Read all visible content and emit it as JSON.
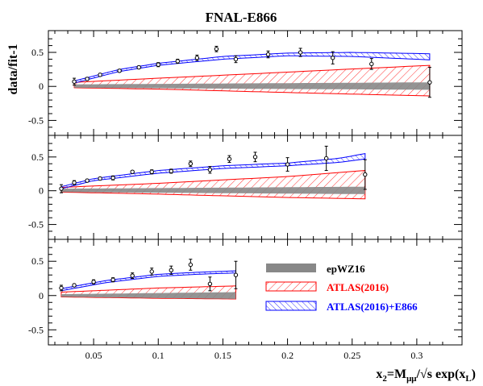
{
  "chart_data": {
    "type": "line",
    "title": "FNAL-E866",
    "ylabel": "data/fit-1",
    "xlabel": "x₂=Mμμ/√s exp(xʟ)",
    "xlabel_parts": {
      "x": "x",
      "x_sub": "2",
      "eq": "=M",
      "m_sub": "μμ",
      "root": "/√s exp(x",
      "l_sub": "L",
      "close": ")"
    },
    "xlim": [
      0.015,
      0.335
    ],
    "xticks": [
      0.05,
      0.1,
      0.15,
      0.2,
      0.25,
      0.3
    ],
    "xtick_labels": [
      "0.05",
      "0.1",
      "0.15",
      "0.2",
      "0.25",
      "0.3"
    ],
    "yticks": [
      -0.5,
      0,
      0.5
    ],
    "ytick_labels": [
      "-0.5",
      "0",
      "0.5"
    ],
    "legend": {
      "placement": "bottom-panel right",
      "entries": [
        {
          "label": "epWZ16",
          "color": "#888888",
          "style": "solid"
        },
        {
          "label": "ATLAS(2016)",
          "color": "#ff0000",
          "style": "hatched"
        },
        {
          "label": "ATLAS(2016)+E866",
          "color": "#0000ff",
          "style": "hatched"
        }
      ]
    },
    "colors": {
      "epwz16": "#888888",
      "atlas": "#ff0000",
      "atlas_e866": "#0000ff",
      "data": "#000000"
    },
    "panels": [
      {
        "ylim": [
          -0.72,
          0.82
        ],
        "x_range": [
          0.035,
          0.31
        ],
        "data": [
          {
            "x": 0.035,
            "y": 0.07,
            "err": 0.05
          },
          {
            "x": 0.045,
            "y": 0.11,
            "err": 0.02
          },
          {
            "x": 0.055,
            "y": 0.17,
            "err": 0.02
          },
          {
            "x": 0.07,
            "y": 0.23,
            "err": 0.02
          },
          {
            "x": 0.085,
            "y": 0.28,
            "err": 0.02
          },
          {
            "x": 0.1,
            "y": 0.32,
            "err": 0.03
          },
          {
            "x": 0.115,
            "y": 0.37,
            "err": 0.03
          },
          {
            "x": 0.13,
            "y": 0.42,
            "err": 0.04
          },
          {
            "x": 0.145,
            "y": 0.55,
            "err": 0.04
          },
          {
            "x": 0.16,
            "y": 0.4,
            "err": 0.05
          },
          {
            "x": 0.185,
            "y": 0.47,
            "err": 0.05
          },
          {
            "x": 0.21,
            "y": 0.5,
            "err": 0.06
          },
          {
            "x": 0.235,
            "y": 0.42,
            "err": 0.09
          },
          {
            "x": 0.265,
            "y": 0.33,
            "err": 0.08
          },
          {
            "x": 0.31,
            "y": 0.06,
            "err": 0.22
          }
        ],
        "epwz16": {
          "x": [
            0.035,
            0.31
          ],
          "lo": [
            -0.02,
            -0.05
          ],
          "hi": [
            0.03,
            0.06
          ]
        },
        "atlas": {
          "x": [
            0.035,
            0.1,
            0.2,
            0.31
          ],
          "lo": [
            -0.02,
            -0.04,
            -0.09,
            -0.14
          ],
          "hi": [
            0.06,
            0.12,
            0.21,
            0.31
          ]
        },
        "atlas_e866": {
          "x": [
            0.035,
            0.07,
            0.1,
            0.15,
            0.2,
            0.25,
            0.31
          ],
          "lo": [
            0.05,
            0.22,
            0.31,
            0.4,
            0.45,
            0.44,
            0.39
          ],
          "hi": [
            0.08,
            0.25,
            0.34,
            0.44,
            0.49,
            0.5,
            0.48
          ]
        }
      },
      {
        "ylim": [
          -0.72,
          0.82
        ],
        "x_range": [
          0.025,
          0.26
        ],
        "data": [
          {
            "x": 0.025,
            "y": 0.03,
            "err": 0.06
          },
          {
            "x": 0.035,
            "y": 0.12,
            "err": 0.03
          },
          {
            "x": 0.045,
            "y": 0.15,
            "err": 0.02
          },
          {
            "x": 0.055,
            "y": 0.18,
            "err": 0.02
          },
          {
            "x": 0.065,
            "y": 0.19,
            "err": 0.03
          },
          {
            "x": 0.08,
            "y": 0.28,
            "err": 0.02
          },
          {
            "x": 0.095,
            "y": 0.28,
            "err": 0.03
          },
          {
            "x": 0.11,
            "y": 0.29,
            "err": 0.03
          },
          {
            "x": 0.125,
            "y": 0.4,
            "err": 0.04
          },
          {
            "x": 0.14,
            "y": 0.31,
            "err": 0.05
          },
          {
            "x": 0.155,
            "y": 0.47,
            "err": 0.05
          },
          {
            "x": 0.175,
            "y": 0.5,
            "err": 0.07
          },
          {
            "x": 0.2,
            "y": 0.39,
            "err": 0.1
          },
          {
            "x": 0.23,
            "y": 0.48,
            "err": 0.18
          },
          {
            "x": 0.26,
            "y": 0.24,
            "err": 0.22
          }
        ],
        "epwz16": {
          "x": [
            0.025,
            0.26
          ],
          "lo": [
            -0.02,
            -0.05
          ],
          "hi": [
            0.03,
            0.06
          ]
        },
        "atlas": {
          "x": [
            0.025,
            0.1,
            0.2,
            0.26
          ],
          "lo": [
            -0.02,
            -0.05,
            -0.1,
            -0.12
          ],
          "hi": [
            0.05,
            0.11,
            0.21,
            0.3
          ]
        },
        "atlas_e866": {
          "x": [
            0.025,
            0.05,
            0.1,
            0.15,
            0.2,
            0.24,
            0.26
          ],
          "lo": [
            0.03,
            0.15,
            0.26,
            0.33,
            0.37,
            0.42,
            0.47
          ],
          "hi": [
            0.06,
            0.18,
            0.3,
            0.37,
            0.41,
            0.48,
            0.55
          ]
        }
      },
      {
        "ylim": [
          -0.72,
          0.82
        ],
        "x_range": [
          0.025,
          0.16
        ],
        "data": [
          {
            "x": 0.025,
            "y": 0.11,
            "err": 0.04
          },
          {
            "x": 0.035,
            "y": 0.15,
            "err": 0.02
          },
          {
            "x": 0.05,
            "y": 0.2,
            "err": 0.03
          },
          {
            "x": 0.065,
            "y": 0.23,
            "err": 0.03
          },
          {
            "x": 0.08,
            "y": 0.29,
            "err": 0.04
          },
          {
            "x": 0.095,
            "y": 0.35,
            "err": 0.05
          },
          {
            "x": 0.11,
            "y": 0.37,
            "err": 0.06
          },
          {
            "x": 0.125,
            "y": 0.45,
            "err": 0.08
          },
          {
            "x": 0.14,
            "y": 0.17,
            "err": 0.1
          },
          {
            "x": 0.16,
            "y": 0.3,
            "err": 0.2
          }
        ],
        "epwz16": {
          "x": [
            0.025,
            0.16
          ],
          "lo": [
            -0.02,
            -0.05
          ],
          "hi": [
            0.02,
            0.05
          ]
        },
        "atlas": {
          "x": [
            0.025,
            0.1,
            0.16
          ],
          "lo": [
            -0.02,
            -0.04,
            -0.05
          ],
          "hi": [
            0.05,
            0.11,
            0.14
          ]
        },
        "atlas_e866": {
          "x": [
            0.025,
            0.06,
            0.1,
            0.13,
            0.16
          ],
          "lo": [
            0.07,
            0.19,
            0.28,
            0.31,
            0.33
          ],
          "hi": [
            0.1,
            0.22,
            0.31,
            0.34,
            0.36
          ]
        }
      }
    ]
  }
}
